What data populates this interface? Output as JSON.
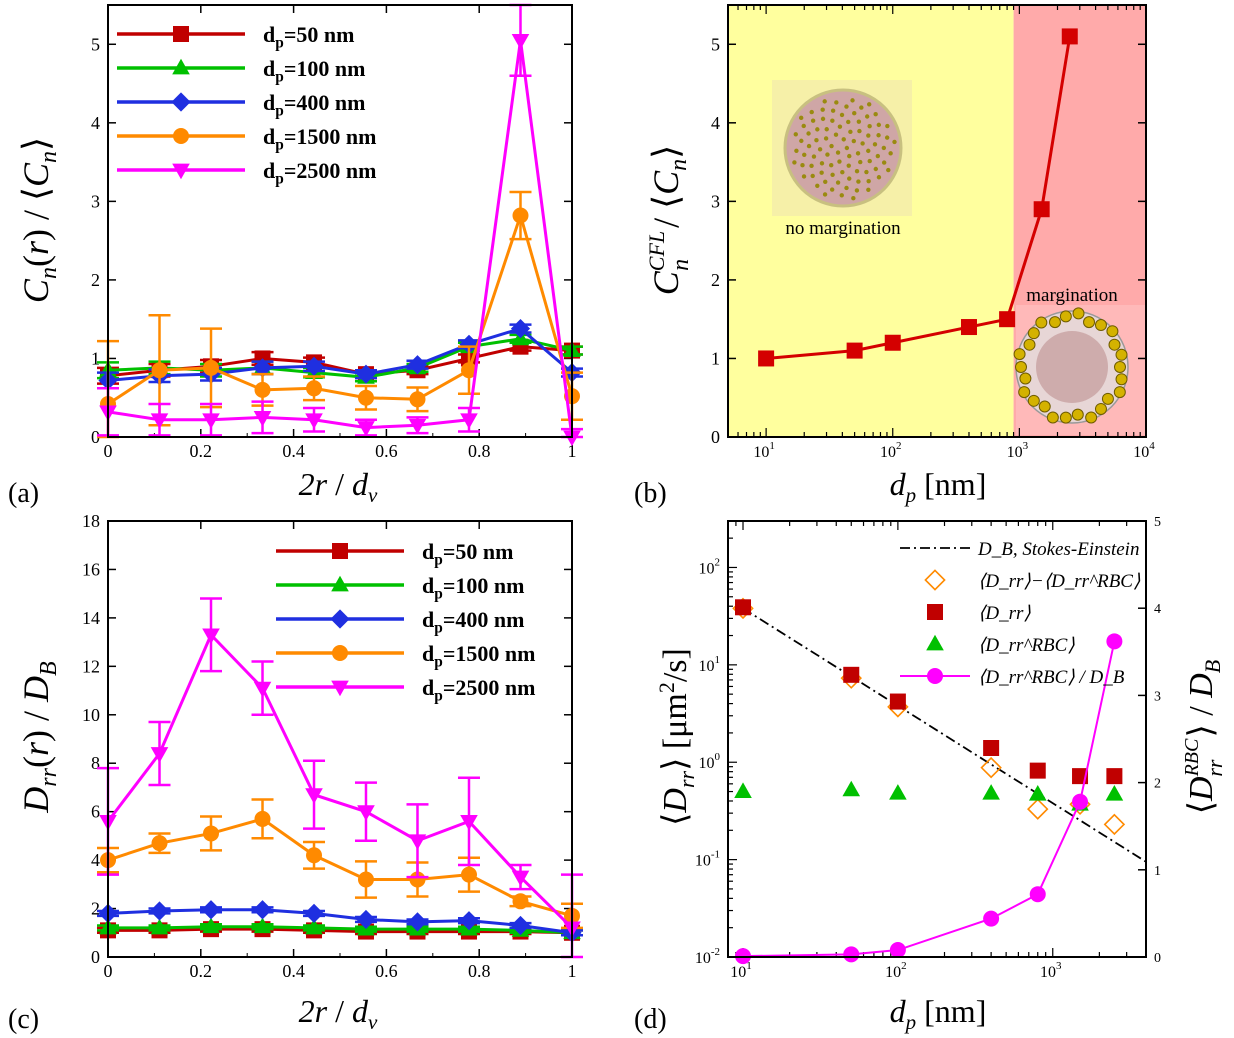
{
  "panel_labels": [
    "(a)",
    "(b)",
    "(c)",
    "(d)"
  ],
  "colors": {
    "d50": "#c00000",
    "d100": "#00c000",
    "d400": "#1f2fe0",
    "d1500": "#ff8a00",
    "d2500": "#ff00ff",
    "cfl": "#d40000",
    "yellow_bg": "#ffff9e",
    "red_bg": "#ffaaaa",
    "stokes": "#000000"
  },
  "chart_data": [
    {
      "panel": "(a)",
      "type": "line",
      "ylabel": "C_n(r) / ⟨C_n⟩",
      "xlabel": "2r / d_v",
      "xlim": [
        0,
        1
      ],
      "ylim": [
        0,
        5.5
      ],
      "xticks": [
        "0",
        "0.2",
        "0.4",
        "0.6",
        "0.8",
        "1"
      ],
      "yticks": [
        "0",
        "1",
        "2",
        "3",
        "4",
        "5"
      ],
      "legend_position": "top-left",
      "x": [
        0,
        0.111,
        0.222,
        0.333,
        0.444,
        0.556,
        0.667,
        0.778,
        0.889,
        1.0
      ],
      "series": [
        {
          "name": "d_p=50 nm",
          "color_key": "d50",
          "marker": "square",
          "values": [
            0.78,
            0.85,
            0.9,
            1.0,
            0.95,
            0.8,
            0.85,
            1.0,
            1.15,
            1.1
          ],
          "errors": [
            0.1,
            0.08,
            0.08,
            0.08,
            0.06,
            0.05,
            0.05,
            0.05,
            0.05,
            0.05
          ]
        },
        {
          "name": "d_p=100 nm",
          "color_key": "d100",
          "marker": "triangle-up",
          "values": [
            0.85,
            0.88,
            0.85,
            0.88,
            0.82,
            0.76,
            0.88,
            1.15,
            1.25,
            1.1
          ],
          "errors": [
            0.1,
            0.08,
            0.08,
            0.08,
            0.06,
            0.05,
            0.05,
            0.05,
            0.05,
            0.05
          ]
        },
        {
          "name": "d_p=400 nm",
          "color_key": "d400",
          "marker": "diamond",
          "values": [
            0.72,
            0.78,
            0.8,
            0.88,
            0.9,
            0.8,
            0.92,
            1.18,
            1.38,
            0.82
          ],
          "errors": [
            0.1,
            0.08,
            0.08,
            0.08,
            0.06,
            0.05,
            0.05,
            0.05,
            0.05,
            0.05
          ]
        },
        {
          "name": "d_p=1500 nm",
          "color_key": "d1500",
          "marker": "circle",
          "values": [
            0.42,
            0.85,
            0.88,
            0.6,
            0.62,
            0.5,
            0.48,
            0.85,
            2.82,
            0.52
          ],
          "errors": [
            0.8,
            0.7,
            0.5,
            0.2,
            0.15,
            0.15,
            0.15,
            0.3,
            0.3,
            0.3
          ]
        },
        {
          "name": "d_p=2500 nm",
          "color_key": "d2500",
          "marker": "triangle-down",
          "values": [
            0.32,
            0.22,
            0.22,
            0.25,
            0.22,
            0.12,
            0.15,
            0.22,
            5.05,
            0.0
          ],
          "errors": [
            0.3,
            0.2,
            0.2,
            0.2,
            0.15,
            0.1,
            0.1,
            0.15,
            0.45,
            0.1
          ]
        }
      ]
    },
    {
      "panel": "(b)",
      "type": "line",
      "ylabel": "C_n^CFL / ⟨C_n⟩",
      "xlabel": "d_p [nm]",
      "xscale": "log",
      "xlim": [
        5,
        10000
      ],
      "ylim": [
        0,
        5.5
      ],
      "xticks": [
        10,
        100,
        1000,
        10000
      ],
      "yticks": [
        "0",
        "1",
        "2",
        "3",
        "4",
        "5"
      ],
      "regions": [
        {
          "label": "no margination",
          "from": 5,
          "to": 900,
          "color_key": "yellow_bg"
        },
        {
          "label": "margination",
          "from": 900,
          "to": 10000,
          "color_key": "red_bg"
        }
      ],
      "series": [
        {
          "name": "",
          "color_key": "cfl",
          "marker": "square",
          "x": [
            10,
            50,
            100,
            400,
            800,
            1500,
            2500
          ],
          "values": [
            1.0,
            1.1,
            1.2,
            1.4,
            1.5,
            2.9,
            5.1
          ]
        }
      ]
    },
    {
      "panel": "(c)",
      "type": "line",
      "ylabel": "D_rr(r) / D_B",
      "xlabel": "2r / d_v",
      "xlim": [
        0,
        1
      ],
      "ylim": [
        0,
        18
      ],
      "xticks": [
        "0",
        "0.2",
        "0.4",
        "0.6",
        "0.8",
        "1"
      ],
      "yticks": [
        "0",
        "2",
        "4",
        "6",
        "8",
        "10",
        "12",
        "14",
        "16",
        "18"
      ],
      "legend_position": "top-right",
      "x": [
        0,
        0.111,
        0.222,
        0.333,
        0.444,
        0.556,
        0.667,
        0.778,
        0.889,
        1.0
      ],
      "series": [
        {
          "name": "d_p=50 nm",
          "color_key": "d50",
          "marker": "square",
          "values": [
            1.1,
            1.1,
            1.15,
            1.15,
            1.1,
            1.05,
            1.05,
            1.05,
            1.05,
            1.0
          ],
          "errors": [
            0.1,
            0.1,
            0.1,
            0.1,
            0.1,
            0.1,
            0.1,
            0.1,
            0.1,
            0.1
          ]
        },
        {
          "name": "d_p=100 nm",
          "color_key": "d100",
          "marker": "triangle-up",
          "values": [
            1.2,
            1.2,
            1.25,
            1.25,
            1.2,
            1.15,
            1.15,
            1.15,
            1.1,
            1.0
          ],
          "errors": [
            0.1,
            0.1,
            0.1,
            0.1,
            0.1,
            0.1,
            0.1,
            0.1,
            0.1,
            0.1
          ]
        },
        {
          "name": "d_p=400 nm",
          "color_key": "d400",
          "marker": "diamond",
          "values": [
            1.8,
            1.9,
            1.95,
            1.95,
            1.8,
            1.55,
            1.45,
            1.5,
            1.3,
            1.0
          ],
          "errors": [
            0.1,
            0.1,
            0.1,
            0.1,
            0.1,
            0.1,
            0.1,
            0.1,
            0.1,
            0.1
          ]
        },
        {
          "name": "d_p=1500 nm",
          "color_key": "d1500",
          "marker": "circle",
          "values": [
            4.0,
            4.7,
            5.1,
            5.7,
            4.2,
            3.2,
            3.2,
            3.4,
            2.3,
            1.7
          ],
          "errors": [
            0.5,
            0.4,
            0.7,
            0.8,
            0.55,
            0.75,
            0.7,
            0.7,
            0.2,
            0.5
          ]
        },
        {
          "name": "d_p=2500 nm",
          "color_key": "d2500",
          "marker": "triangle-down",
          "values": [
            5.6,
            8.4,
            13.3,
            11.1,
            6.7,
            6.0,
            4.8,
            5.6,
            3.3,
            1.2
          ],
          "errors": [
            2.2,
            1.3,
            1.5,
            1.1,
            1.4,
            1.2,
            1.5,
            1.8,
            0.5,
            2.2
          ]
        }
      ]
    },
    {
      "panel": "(d)",
      "type": "scatter",
      "xlabel": "d_p [nm]",
      "ylabel": "⟨D_rr⟩ [μm²/s]",
      "ylabel_right": "⟨D_rr^RBC⟩ / D_B",
      "xscale": "log",
      "yscale": "log",
      "xlim": [
        8,
        4000
      ],
      "ylim": [
        0.01,
        300
      ],
      "ylim_right": [
        0,
        5
      ],
      "xticks": [
        10,
        100,
        1000
      ],
      "yticks": [
        0.01,
        0.1,
        1,
        10,
        100
      ],
      "yticks_right": [
        "0",
        "1",
        "2",
        "3",
        "4",
        "5"
      ],
      "legend_position": "top-right",
      "x": [
        10,
        50,
        100,
        400,
        800,
        1500,
        2500
      ],
      "series": [
        {
          "name": "D_B, Stokes-Einstein",
          "color_key": "stokes",
          "style": "dash-dot",
          "x_line": [
            10,
            4000
          ],
          "values_line": [
            38,
            0.095
          ]
        },
        {
          "name": "⟨D_rr⟩−⟨D_rr^RBC⟩",
          "color_key": "d1500",
          "marker": "open-diamond",
          "values": [
            38,
            7.3,
            3.7,
            0.88,
            0.33,
            0.37,
            0.23
          ]
        },
        {
          "name": "⟨D_rr⟩",
          "color_key": "d50",
          "marker": "square",
          "values": [
            39,
            7.9,
            4.2,
            1.4,
            0.82,
            0.72,
            0.72
          ]
        },
        {
          "name": "⟨D_rr^RBC⟩",
          "color_key": "d100",
          "marker": "triangle-up",
          "values": [
            0.5,
            0.52,
            0.48,
            0.48,
            0.47,
            0.37,
            0.47
          ]
        },
        {
          "name": "⟨D_rr^RBC⟩ / D_B",
          "color_key": "d2500",
          "marker": "circle",
          "axis": "right",
          "values": [
            0.01,
            0.03,
            0.08,
            0.44,
            0.72,
            1.78,
            3.62
          ]
        }
      ]
    }
  ]
}
